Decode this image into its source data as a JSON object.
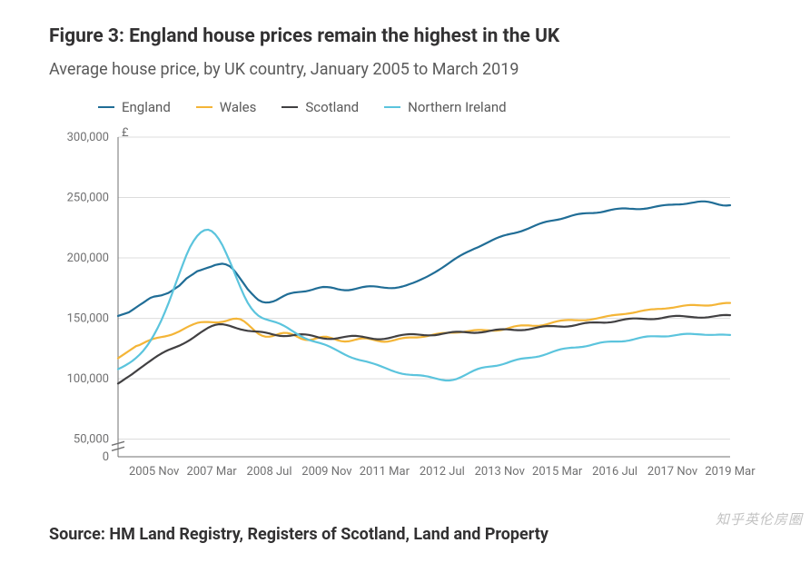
{
  "title": "Figure 3: England house prices remain the highest in the UK",
  "subtitle": "Average house price, by UK country, January 2005 to March 2019",
  "source": "Source: HM Land Registry, Registers of Scotland, Land and Property",
  "watermark": "知乎英伦房圈",
  "chart": {
    "type": "line",
    "y_unit_label": "£",
    "background_color": "#ffffff",
    "grid_color": "#dcdcdc",
    "axis_text_color": "#707071",
    "axis_fontsize": 13,
    "title_fontsize": 21,
    "subtitle_fontsize": 18,
    "line_width": 2.2,
    "ylim": [
      0,
      300000
    ],
    "yticks": [
      0,
      50000,
      100000,
      150000,
      200000,
      250000,
      300000
    ],
    "ytick_labels": [
      "0",
      "50,000",
      "100,000",
      "150,000",
      "200,000",
      "250,000",
      "300,000"
    ],
    "axis_break": true,
    "x_labels": [
      "2005 Nov",
      "2007 Mar",
      "2008 Jul",
      "2009 Nov",
      "2011 Mar",
      "2012 Jul",
      "2013 Nov",
      "2015 Mar",
      "2016 Jul",
      "2017 Nov",
      "2019 Mar"
    ],
    "x_count": 171,
    "series": [
      {
        "name": "England",
        "color": "#206d96",
        "data": [
          152000,
          153000,
          154000,
          155000,
          157000,
          159000,
          161000,
          163000,
          165000,
          167000,
          168000,
          168500,
          169000,
          170000,
          171000,
          173000,
          175000,
          177000,
          180000,
          183000,
          185000,
          187000,
          189000,
          190000,
          191000,
          192000,
          193000,
          194200,
          194800,
          195200,
          194600,
          193200,
          190500,
          186800,
          182600,
          178400,
          174200,
          170900,
          167800,
          165200,
          163700,
          163100,
          163200,
          163900,
          165100,
          166800,
          168500,
          169900,
          170800,
          171400,
          171700,
          172000,
          172300,
          172900,
          173700,
          174700,
          175500,
          176000,
          175900,
          175600,
          175000,
          174200,
          173600,
          173300,
          173300,
          173700,
          174400,
          175200,
          175900,
          176400,
          176600,
          176500,
          176200,
          175800,
          175400,
          175100,
          175000,
          175200,
          175700,
          176400,
          177300,
          178300,
          179400,
          180600,
          181900,
          183300,
          184800,
          186400,
          188100,
          189900,
          191800,
          193800,
          195900,
          198000,
          200000,
          201800,
          203400,
          204900,
          206300,
          207600,
          208900,
          210300,
          211800,
          213300,
          214800,
          216200,
          217400,
          218400,
          219200,
          219900,
          220500,
          221200,
          222100,
          223200,
          224400,
          225700,
          227000,
          228200,
          229200,
          230000,
          230600,
          231100,
          231600,
          232200,
          233000,
          234000,
          235000,
          235800,
          236400,
          236800,
          237000,
          237100,
          237200,
          237400,
          237800,
          238400,
          239100,
          239800,
          240400,
          240800,
          241000,
          241000,
          240800,
          240600,
          240400,
          240400,
          240600,
          241000,
          241600,
          242300,
          242900,
          243400,
          243800,
          244000,
          244100,
          244200,
          244300,
          244500,
          244900,
          245400,
          246000,
          246500,
          246800,
          246800,
          246400,
          245700,
          244900,
          244100,
          243500,
          243300,
          243600
        ]
      },
      {
        "name": "Wales",
        "color": "#f4b537",
        "data": [
          117000,
          119000,
          121000,
          123000,
          125000,
          127000,
          128000,
          129500,
          131000,
          132200,
          133200,
          134000,
          134500,
          135000,
          135700,
          136600,
          137800,
          139200,
          140800,
          142400,
          143900,
          145200,
          146200,
          146800,
          147000,
          147000,
          146800,
          146600,
          146700,
          147100,
          147800,
          148800,
          149600,
          149800,
          149200,
          147600,
          145200,
          142400,
          139600,
          137200,
          135600,
          134800,
          134800,
          135400,
          136400,
          137400,
          138000,
          137900,
          137200,
          135900,
          134400,
          133000,
          132200,
          132000,
          132500,
          133400,
          134300,
          134800,
          134700,
          134000,
          133000,
          131900,
          131100,
          130800,
          131000,
          131600,
          132400,
          133100,
          133500,
          133400,
          132900,
          132200,
          131400,
          130800,
          130600,
          130800,
          131400,
          132200,
          133000,
          133600,
          134000,
          134200,
          134200,
          134200,
          134400,
          134800,
          135400,
          136100,
          136800,
          137400,
          137800,
          138000,
          138100,
          138100,
          138200,
          138400,
          138800,
          139300,
          139800,
          140200,
          140400,
          140400,
          140200,
          140000,
          139800,
          139800,
          140100,
          140700,
          141500,
          142400,
          143200,
          143800,
          144100,
          144200,
          144100,
          143900,
          143800,
          143900,
          144300,
          145000,
          145900,
          146800,
          147600,
          148200,
          148500,
          148600,
          148600,
          148500,
          148400,
          148400,
          148500,
          148800,
          149300,
          149900,
          150600,
          151300,
          151900,
          152400,
          152800,
          153100,
          153400,
          153700,
          154100,
          154600,
          155200,
          155900,
          156500,
          157000,
          157400,
          157600,
          157800,
          157900,
          158100,
          158400,
          158800,
          159300,
          159900,
          160400,
          160800,
          161000,
          161000,
          160900,
          160700,
          160600,
          160600,
          160900,
          161400,
          162000,
          162500,
          162800,
          162800
        ]
      },
      {
        "name": "Scotland",
        "color": "#414042",
        "data": [
          96000,
          98000,
          100000,
          102000,
          104000,
          106200,
          108400,
          110600,
          112800,
          114900,
          117000,
          119000,
          120800,
          122400,
          123800,
          125000,
          126200,
          127400,
          128800,
          130400,
          132200,
          134200,
          136300,
          138400,
          140400,
          142200,
          143600,
          144600,
          145100,
          145100,
          144600,
          143800,
          142800,
          141800,
          140900,
          140200,
          139700,
          139400,
          139200,
          139000,
          138700,
          138200,
          137500,
          136700,
          136000,
          135500,
          135300,
          135400,
          135700,
          136200,
          136600,
          136800,
          136700,
          136300,
          135600,
          134800,
          134000,
          133400,
          133000,
          132900,
          133100,
          133500,
          134100,
          134700,
          135200,
          135500,
          135500,
          135200,
          134700,
          134100,
          133500,
          133000,
          132700,
          132700,
          133000,
          133500,
          134200,
          135000,
          135700,
          136300,
          136700,
          136900,
          136900,
          136700,
          136400,
          136100,
          135900,
          135900,
          136100,
          136500,
          137100,
          137700,
          138300,
          138700,
          138900,
          138900,
          138700,
          138400,
          138100,
          138000,
          138100,
          138400,
          138900,
          139500,
          140100,
          140600,
          140900,
          141000,
          140900,
          140700,
          140400,
          140200,
          140200,
          140400,
          140800,
          141400,
          142100,
          142800,
          143300,
          143600,
          143700,
          143600,
          143400,
          143200,
          143100,
          143300,
          143700,
          144300,
          145000,
          145700,
          146200,
          146500,
          146600,
          146600,
          146500,
          146400,
          146500,
          146800,
          147300,
          148000,
          148700,
          149300,
          149700,
          149900,
          149900,
          149800,
          149600,
          149400,
          149300,
          149400,
          149700,
          150200,
          150800,
          151400,
          151800,
          152000,
          152000,
          151800,
          151500,
          151200,
          150900,
          150700,
          150600,
          150700,
          151000,
          151400,
          151900,
          152400,
          152700,
          152800,
          152600
        ]
      },
      {
        "name": "Northern Ireland",
        "color": "#5bc4dd",
        "data": [
          108000,
          109400,
          111000,
          112800,
          114800,
          117200,
          120000,
          123200,
          127000,
          131400,
          136400,
          142000,
          148200,
          155000,
          162400,
          170400,
          178600,
          186800,
          194800,
          202400,
          209000,
          214200,
          218200,
          221200,
          223000,
          223400,
          222200,
          219600,
          215600,
          210400,
          204200,
          197400,
          190200,
          182800,
          175600,
          168800,
          163000,
          158400,
          154800,
          152200,
          150400,
          149200,
          148300,
          147500,
          146600,
          145500,
          144000,
          142300,
          140400,
          138500,
          136600,
          134900,
          133400,
          132200,
          131200,
          130400,
          129600,
          128700,
          127600,
          126300,
          124800,
          123200,
          121600,
          120000,
          118600,
          117400,
          116400,
          115600,
          114900,
          114200,
          113400,
          112500,
          111500,
          110400,
          109200,
          108000,
          106800,
          105700,
          104800,
          104100,
          103600,
          103300,
          103100,
          103000,
          102800,
          102400,
          101900,
          101200,
          100400,
          99600,
          99000,
          98600,
          98600,
          99000,
          99800,
          101000,
          102400,
          104000,
          105600,
          107000,
          108200,
          109000,
          109600,
          110000,
          110300,
          110700,
          111300,
          112100,
          113100,
          114200,
          115200,
          116000,
          116600,
          117000,
          117300,
          117600,
          118000,
          118600,
          119400,
          120400,
          121500,
          122600,
          123600,
          124400,
          125000,
          125400,
          125700,
          125900,
          126100,
          126400,
          126900,
          127600,
          128400,
          129200,
          129900,
          130400,
          130700,
          130800,
          130800,
          130800,
          130900,
          131200,
          131700,
          132400,
          133200,
          134000,
          134600,
          135000,
          135200,
          135200,
          135100,
          135000,
          135000,
          135200,
          135600,
          136100,
          136600,
          137000,
          137200,
          137200,
          137000,
          136800,
          136600,
          136400,
          136300,
          136300,
          136400,
          136500,
          136500,
          136400,
          136200
        ]
      }
    ]
  }
}
